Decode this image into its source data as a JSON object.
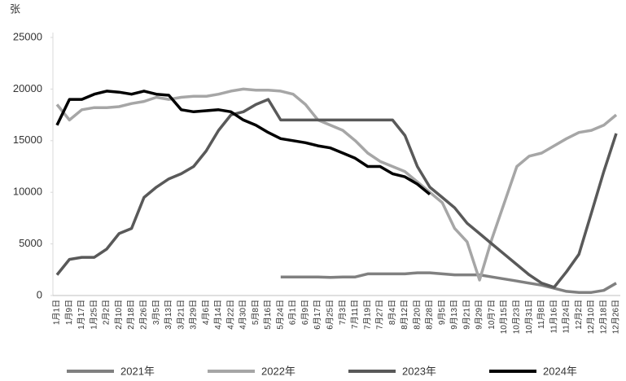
{
  "chart_data": {
    "type": "line",
    "y_label": "张",
    "categories": [
      "1月1日",
      "1月9日",
      "1月17日",
      "1月25日",
      "2月2日",
      "2月10日",
      "2月18日",
      "2月26日",
      "3月5日",
      "3月13日",
      "3月21日",
      "3月29日",
      "4月6日",
      "4月14日",
      "4月22日",
      "4月30日",
      "5月8日",
      "5月16日",
      "5月24日",
      "6月1日",
      "6月9日",
      "6月17日",
      "6月25日",
      "7月3日",
      "7月11日",
      "7月19日",
      "7月27日",
      "8月4日",
      "8月12日",
      "8月20日",
      "8月28日",
      "9月5日",
      "9月13日",
      "9月21日",
      "9月29日",
      "10月7日",
      "10月15日",
      "10月23日",
      "10月31日",
      "11月8日",
      "11月16日",
      "11月24日",
      "12月2日",
      "12月10日",
      "12月18日",
      "12月26日"
    ],
    "series": [
      {
        "name": "2021年",
        "color": "#808080",
        "values": [
          null,
          null,
          null,
          null,
          null,
          null,
          null,
          null,
          null,
          null,
          null,
          null,
          null,
          null,
          null,
          null,
          null,
          null,
          1800,
          1800,
          1800,
          1800,
          1750,
          1800,
          1800,
          2100,
          2100,
          2100,
          2100,
          2200,
          2200,
          2100,
          2000,
          2000,
          2000,
          1800,
          1600,
          1400,
          1200,
          1000,
          700,
          400,
          300,
          300,
          500,
          1200
        ]
      },
      {
        "name": "2022年",
        "color": "#a6a6a6",
        "values": [
          18500,
          17000,
          18000,
          18200,
          18200,
          18300,
          18600,
          18800,
          19200,
          19000,
          19200,
          19300,
          19300,
          19500,
          19800,
          20000,
          19900,
          19900,
          19800,
          19500,
          18500,
          17000,
          16500,
          16000,
          15000,
          13800,
          13000,
          12500,
          12000,
          11000,
          10000,
          9000,
          6500,
          5200,
          1500,
          5500,
          9000,
          12500,
          13500,
          13800,
          14500,
          15200,
          15800,
          16000,
          16500,
          17500
        ]
      },
      {
        "name": "2023年",
        "color": "#595959",
        "values": [
          2000,
          3500,
          3700,
          3700,
          4500,
          6000,
          6500,
          9500,
          10500,
          11300,
          11800,
          12500,
          14000,
          16000,
          17500,
          17800,
          18500,
          19000,
          17000,
          17000,
          17000,
          17000,
          17000,
          17000,
          17000,
          17000,
          17000,
          17000,
          15500,
          12500,
          10500,
          9500,
          8500,
          7000,
          6000,
          5000,
          4000,
          3000,
          2000,
          1200,
          800,
          2300,
          4000,
          8000,
          12000,
          15700
        ]
      },
      {
        "name": "2024年",
        "color": "#000000",
        "values": [
          16500,
          19000,
          19000,
          19500,
          19800,
          19700,
          19500,
          19800,
          19500,
          19400,
          18000,
          17800,
          17900,
          18000,
          17800,
          17000,
          16500,
          15800,
          15200,
          15000,
          14800,
          14500,
          14300,
          13800,
          13300,
          12500,
          12500,
          11800,
          11500,
          10800,
          9800,
          null,
          null,
          null,
          null,
          null,
          null,
          null,
          null,
          null,
          null,
          null,
          null,
          null,
          null,
          null
        ]
      }
    ],
    "ylim": [
      0,
      25000
    ],
    "yticks": [
      0,
      5000,
      10000,
      15000,
      20000,
      25000
    ],
    "grid": false
  }
}
